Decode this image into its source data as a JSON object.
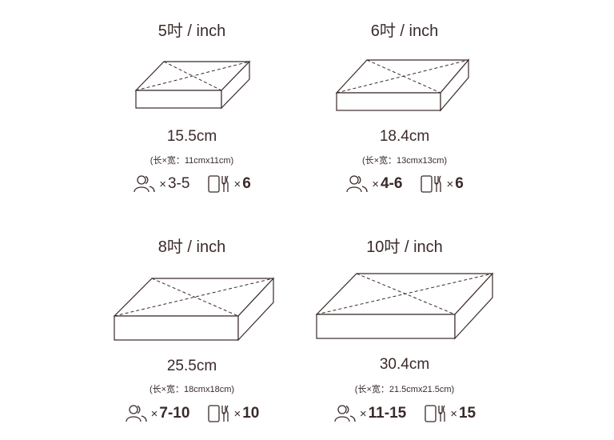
{
  "colors": {
    "stroke": "#3a2a2a"
  },
  "icons": {
    "people": "people-icon",
    "tableware": "tableware-icon"
  },
  "cakes": [
    {
      "title": "5吋 / inch",
      "size": "15.5cm",
      "dims": "(长×宽：11cmx11cm)",
      "people": "3-5",
      "tableware": "6"
    },
    {
      "title": "6吋 / inch",
      "size": "18.4cm",
      "dims": "(长×宽：13cmx13cm)",
      "people": "4-6",
      "tableware": "6"
    },
    {
      "title": "8吋 / inch",
      "size": "25.5cm",
      "dims": "(长×宽：18cmx18cm)",
      "people": "7-10",
      "tableware": "10"
    },
    {
      "title": "10吋 / inch",
      "size": "30.4cm",
      "dims": "(长×宽：21.5cmx21.5cm)",
      "people": "11-15",
      "tableware": "15"
    }
  ],
  "multiply_sign": "×"
}
